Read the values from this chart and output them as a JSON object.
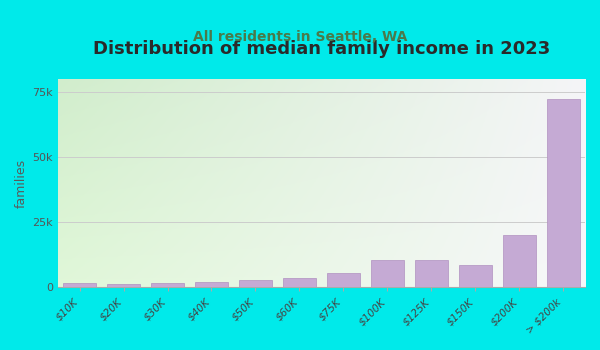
{
  "title": "Distribution of median family income in 2023",
  "subtitle": "All residents in Seattle, WA",
  "ylabel": "families",
  "categories": [
    "$10K",
    "$20K",
    "$30K",
    "$40K",
    "$50K",
    "$60K",
    "$75K",
    "$100K",
    "$125K",
    "$150K",
    "$200K",
    "> $200k"
  ],
  "values": [
    1800,
    1500,
    1800,
    2000,
    2800,
    3500,
    5500,
    10500,
    10500,
    8500,
    20000,
    72000
  ],
  "bar_color": "#c5aad4",
  "bar_edge_color": "#b090c0",
  "background_color": "#00eaea",
  "title_color": "#2a2a2a",
  "subtitle_color": "#4a7a4a",
  "ylabel_color": "#5a5a5a",
  "ytick_labels": [
    "0",
    "25k",
    "50k",
    "75k"
  ],
  "ytick_values": [
    0,
    25000,
    50000,
    75000
  ],
  "ylim": [
    0,
    80000
  ],
  "title_fontsize": 13,
  "subtitle_fontsize": 10,
  "ylabel_fontsize": 9,
  "grid_color": "#cccccc",
  "plot_bg_color_topleft": [
    0.82,
    0.93,
    0.8,
    1.0
  ],
  "plot_bg_color_topright": [
    0.96,
    0.96,
    0.97,
    1.0
  ],
  "plot_bg_color_bottomleft": [
    0.88,
    0.97,
    0.85,
    1.0
  ],
  "plot_bg_color_bottomright": [
    0.97,
    0.97,
    0.98,
    1.0
  ]
}
